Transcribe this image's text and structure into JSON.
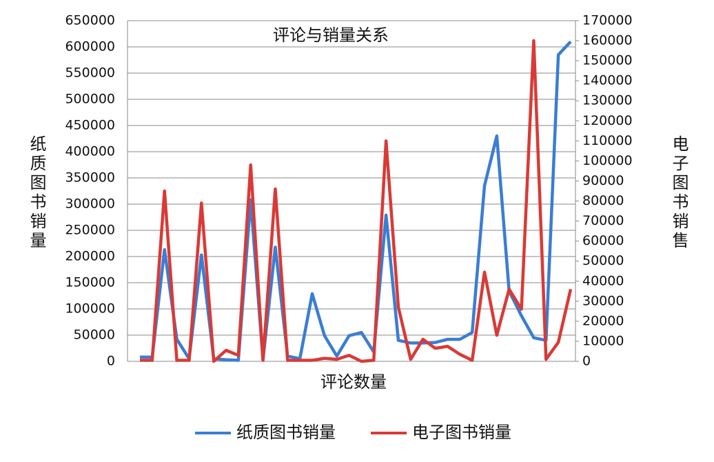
{
  "chart_data": {
    "type": "line",
    "title": "评论与销量关系",
    "x_label": "评论数量",
    "y_label": "纸质图书销量",
    "y2_label": "电子图书销售",
    "categories": [
      null,
      null,
      null,
      null,
      null,
      null,
      null,
      null,
      null,
      null,
      null,
      null,
      null,
      null,
      null,
      null,
      null,
      null,
      null,
      null,
      null,
      null,
      null,
      null,
      null,
      null,
      null,
      null,
      null,
      null,
      null,
      null,
      null,
      null,
      null,
      null
    ],
    "series": [
      {
        "name": "纸质图书销量",
        "color": "#3a7dd4",
        "axis": "y",
        "values": [
          8000,
          8000,
          213000,
          42000,
          5000,
          203000,
          5000,
          3000,
          2000,
          308000,
          3000,
          218000,
          10000,
          5000,
          129000,
          49000,
          10000,
          49000,
          55000,
          18000,
          279000,
          40000,
          35000,
          35000,
          36000,
          42000,
          42000,
          55000,
          335000,
          430000,
          134000,
          87000,
          45000,
          40000,
          585000,
          610000
        ]
      },
      {
        "name": "电子图书销量",
        "color": "#d93a36",
        "axis": "y2",
        "values": [
          500,
          500,
          85000,
          500,
          500,
          79000,
          0,
          5500,
          3000,
          98000,
          500,
          86000,
          500,
          500,
          500,
          1500,
          1000,
          3000,
          0,
          500,
          110000,
          27000,
          1000,
          11000,
          6500,
          7500,
          3500,
          500,
          44500,
          13000,
          36000,
          26000,
          160000,
          1000,
          9500,
          36000
        ]
      }
    ],
    "ylim": [
      0,
      650000
    ],
    "yticks": [
      0,
      50000,
      100000,
      150000,
      200000,
      250000,
      300000,
      350000,
      400000,
      450000,
      500000,
      550000,
      600000,
      650000
    ],
    "y2lim": [
      0,
      170000
    ],
    "y2ticks": [
      0,
      10000,
      20000,
      30000,
      40000,
      50000,
      60000,
      70000,
      80000,
      90000,
      100000,
      110000,
      120000,
      130000,
      140000,
      150000,
      160000,
      170000
    ],
    "grid": true,
    "legend": "bottom"
  }
}
